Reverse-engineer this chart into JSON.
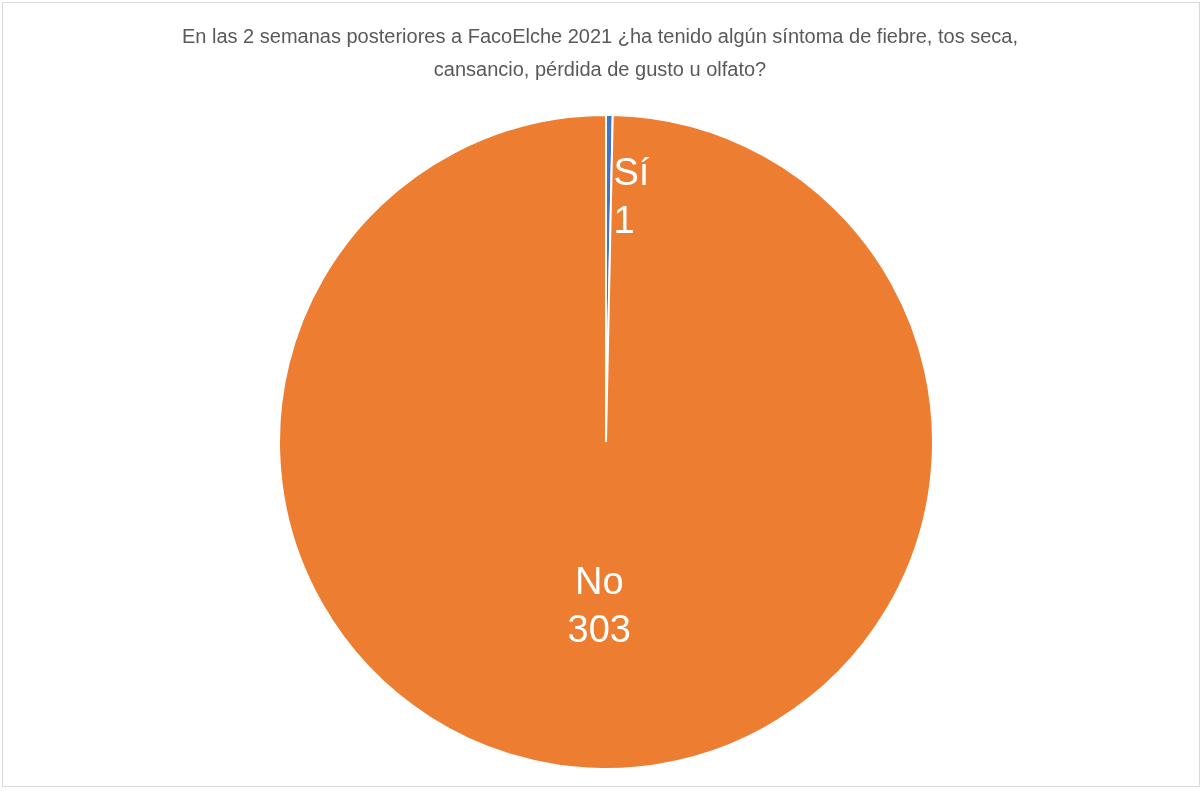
{
  "chart_data": {
    "type": "pie",
    "title": "En las 2 semanas posteriores a FacoElche 2021 ¿ha tenido algún síntoma de fiebre, tos seca, cansancio, pérdida de gusto u olfato?",
    "categories": [
      "Sí",
      "No"
    ],
    "values": [
      1,
      303
    ],
    "colors": [
      "#4472c4",
      "#ed7d31"
    ],
    "data_labels": true
  }
}
